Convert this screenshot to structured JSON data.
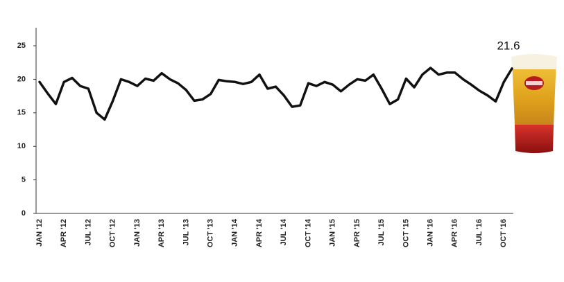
{
  "chart_data": {
    "type": "line",
    "categories": [
      "JAN '12",
      null,
      null,
      "APR '12",
      null,
      null,
      "JUL '12",
      null,
      null,
      "OCT '12",
      null,
      null,
      "JAN '13",
      null,
      null,
      "APR '13",
      null,
      null,
      "JUL '13",
      null,
      null,
      "OCT '13",
      null,
      null,
      "JAN '14",
      null,
      null,
      "APR '14",
      null,
      null,
      "JUL '14",
      null,
      null,
      "OCT '14",
      null,
      null,
      "JAN '15",
      null,
      null,
      "APR '15",
      null,
      null,
      "JUL '15",
      null,
      null,
      "OCT '15",
      null,
      null,
      "JAN '16",
      null,
      null,
      "APR '16",
      null,
      null,
      "JUL '16",
      null,
      null,
      "OCT '16",
      null
    ],
    "values": [
      19.6,
      17.9,
      16.3,
      19.6,
      20.2,
      19.0,
      18.6,
      15.0,
      14.0,
      16.8,
      20.0,
      19.6,
      19.0,
      20.1,
      19.8,
      20.9,
      20.0,
      19.4,
      18.4,
      16.8,
      17.0,
      17.8,
      19.9,
      19.7,
      19.6,
      19.3,
      19.6,
      20.7,
      18.6,
      18.9,
      17.6,
      15.9,
      16.1,
      19.4,
      19.0,
      19.6,
      19.2,
      18.2,
      19.2,
      20.0,
      19.8,
      20.7,
      18.6,
      16.3,
      17.0,
      20.1,
      18.8,
      20.7,
      21.7,
      20.7,
      21.0,
      21.0,
      20.0,
      19.2,
      18.3,
      17.6,
      16.7,
      19.6,
      21.6
    ],
    "color": "#111111",
    "ylim": [
      0,
      28
    ],
    "yticks": [
      0,
      5,
      10,
      15,
      20,
      25
    ],
    "grid": false
  }
}
